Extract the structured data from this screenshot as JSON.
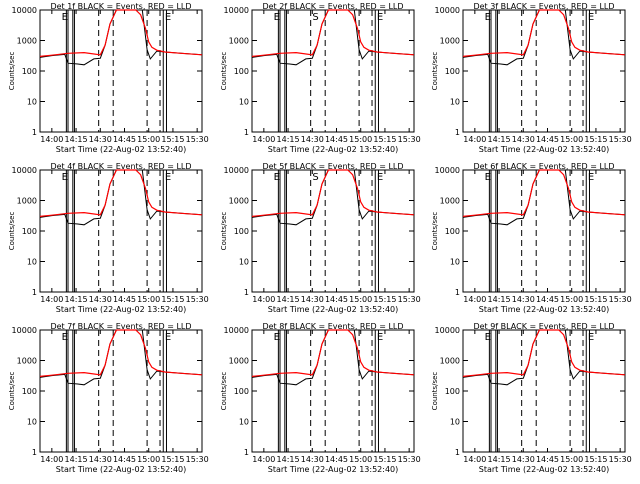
{
  "chart_data": {
    "type": "line",
    "common": {
      "xlabel": "Start Time (22-Aug-02 13:52:40)",
      "ylabel": "Counts/sec",
      "x_ticks": [
        "14:00",
        "14:15",
        "14:30",
        "14:45",
        "15:00",
        "15:15",
        "15:30"
      ],
      "y_ticks": [
        "1",
        "10",
        "100",
        "1000",
        "10000"
      ],
      "y_scale": "log",
      "ylim": [
        1,
        10000
      ],
      "xlim": [
        "13:52:40",
        "15:33:00"
      ],
      "series": [
        {
          "name": "BLACK = Events",
          "color": "#000000"
        },
        {
          "name": "RED = LLD",
          "color": "#ff0000"
        }
      ],
      "markers": {
        "solid_vertical": [
          "14:09",
          "14:10",
          "14:13",
          "14:14",
          "15:09",
          "15:11"
        ],
        "dashed_vertical": [
          "14:29",
          "14:38",
          "14:59",
          "15:07"
        ],
        "letter_labels": [
          {
            "text": "E",
            "x": "14:09"
          },
          {
            "text": "E",
            "x": "15:10"
          }
        ]
      },
      "red_lld": {
        "x": [
          "13:52:40",
          "14:00",
          "14:10",
          "14:20",
          "14:30",
          "14:33",
          "14:36",
          "14:40",
          "14:44",
          "14:48",
          "14:52",
          "14:55",
          "14:58",
          "15:00",
          "15:02",
          "15:05",
          "15:10",
          "15:20",
          "15:33"
        ],
        "y": [
          300,
          330,
          380,
          400,
          340,
          700,
          3500,
          10000,
          10000,
          10000,
          10000,
          7000,
          2500,
          900,
          600,
          480,
          420,
          380,
          340
        ]
      },
      "black_events": {
        "x": [
          "13:52:40",
          "14:00",
          "14:08",
          "14:10",
          "14:16",
          "14:20",
          "14:26",
          "14:30",
          "14:33",
          "14:36",
          "14:40",
          "14:56",
          "14:59",
          "15:01",
          "15:05",
          "15:10",
          "15:20",
          "15:33"
        ],
        "y": [
          280,
          320,
          350,
          180,
          170,
          160,
          250,
          260,
          700,
          3500,
          10000,
          10000,
          500,
          250,
          450,
          420,
          380,
          340
        ]
      }
    },
    "panels": [
      {
        "title": "Det 1f BLACK = Events, RED = LLD",
        "title_center": "",
        "title_extra": "",
        "letters": [
          "E",
          "",
          "E"
        ]
      },
      {
        "title": "Det 2f BLACK = Events, RED = LLD",
        "title_center": "",
        "title_extra": "",
        "letters": [
          "E",
          "S",
          "E"
        ]
      },
      {
        "title": "Det 3f BLACK = Events, RED = LLD",
        "title_center": "",
        "title_extra": "",
        "letters": [
          "E",
          "",
          "E"
        ]
      },
      {
        "title": "Det 4f BLACK = Events, RED = LLD",
        "title_center": "",
        "title_extra": "",
        "letters": [
          "E",
          "",
          "E"
        ]
      },
      {
        "title": "Det 5f BLACK = Events, RED = LLD",
        "title_center": "",
        "title_extra": "",
        "letters": [
          "E",
          "S",
          "E"
        ]
      },
      {
        "title": "Det 6f BLACK = Events, RED = LLD",
        "title_center": "",
        "title_extra": "",
        "letters": [
          "E",
          "",
          "E"
        ]
      },
      {
        "title": "Det 7f BLACK = Events, RED = LLD",
        "title_center": "",
        "title_extra": "",
        "letters": [
          "E",
          "",
          "E"
        ]
      },
      {
        "title": "Det 8f BLACK = Events, RED = LLD",
        "title_center": "",
        "title_extra": "",
        "letters": [
          "E",
          "",
          "E"
        ]
      },
      {
        "title": "Det 9f BLACK = Events, RED = LLD",
        "title_center": "",
        "title_extra": "",
        "letters": [
          "E",
          "",
          "E"
        ]
      }
    ]
  }
}
